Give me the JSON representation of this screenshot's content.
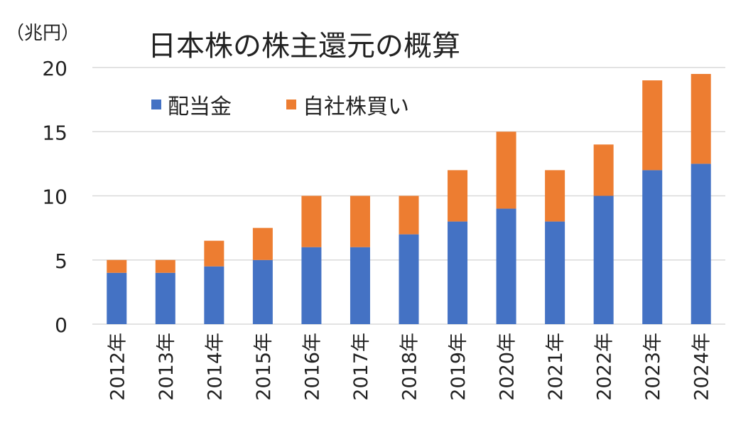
{
  "chart_data": {
    "type": "bar",
    "stacked": true,
    "title": "日本株の株主還元の概算",
    "unit_label": "（兆円）",
    "xlabel": "",
    "ylabel": "",
    "ylim": [
      0,
      20
    ],
    "yticks": [
      "0",
      "5",
      "10",
      "15",
      "20"
    ],
    "grid": true,
    "legend_position": "top-left",
    "categories": [
      "2012年",
      "2013年",
      "2014年",
      "2015年",
      "2016年",
      "2017年",
      "2018年",
      "2019年",
      "2020年",
      "2021年",
      "2022年",
      "2023年",
      "2024年"
    ],
    "series": [
      {
        "name": "配当金",
        "color": "#4472C4",
        "values": [
          4,
          4,
          4.5,
          5,
          6,
          6,
          7,
          8,
          9,
          8,
          10,
          12,
          12.5
        ]
      },
      {
        "name": "自社株買い",
        "color": "#ED7D31",
        "values": [
          1,
          1,
          2,
          2.5,
          4,
          4,
          3,
          4,
          6,
          4,
          4,
          7,
          7
        ]
      }
    ]
  }
}
